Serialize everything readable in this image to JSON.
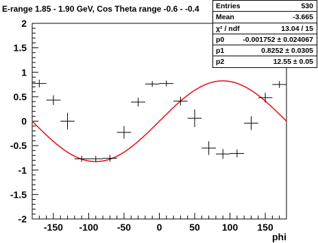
{
  "title": "E-range 1.85 - 1.90 GeV, Cos Theta range -0.6 - -0.4",
  "stats": [
    {
      "label": "Entries",
      "value": "530"
    },
    {
      "label": "Mean",
      "value": "-3.665"
    },
    {
      "label": "χ² / ndf",
      "value": "13.04 / 15"
    },
    {
      "label": "p0",
      "value": "-0.001752 ± 0.024067"
    },
    {
      "label": "p1",
      "value": "0.8252 ± 0.0305"
    },
    {
      "label": "p2",
      "value": "12.55 ± 0.05"
    }
  ],
  "colors": {
    "fit": "#e8141c",
    "data": "#000000"
  },
  "chart_data": {
    "type": "scatter",
    "title": "E-range 1.85 - 1.90 GeV, Cos Theta range -0.6 - -0.4",
    "xlabel": "phi",
    "ylabel": "",
    "xlim": [
      -180,
      180
    ],
    "ylim": [
      -2,
      2
    ],
    "xticks": [
      -150,
      -100,
      -50,
      0,
      50,
      100,
      150
    ],
    "yticks": [
      -2,
      -1.5,
      -1,
      -0.5,
      0,
      0.5,
      1,
      1.5,
      2
    ],
    "ytick_labels": [
      "-2",
      "-1.5",
      "-1",
      "-0.5",
      "0",
      "0.5",
      "1",
      "1.5",
      "2"
    ],
    "grid": false,
    "series": [
      {
        "x": [
          -170,
          -150,
          -130,
          -110,
          -90,
          -70,
          -50,
          -30,
          -10,
          10,
          30,
          50,
          70,
          90,
          110,
          130,
          150,
          170
        ],
        "y": [
          0.77,
          0.43,
          0.0,
          -0.77,
          -0.77,
          -0.76,
          -0.23,
          0.39,
          0.76,
          0.77,
          0.41,
          0.06,
          -0.55,
          -0.67,
          -0.66,
          -0.04,
          0.48,
          0.75
        ],
        "xerr": 10,
        "yerr": [
          0.08,
          0.1,
          0.17,
          0.06,
          0.06,
          0.07,
          0.13,
          0.09,
          0.06,
          0.06,
          0.09,
          0.18,
          0.14,
          0.1,
          0.08,
          0.14,
          0.1,
          0.07
        ]
      }
    ],
    "fit": {
      "function": "p0 + p1*sin(p2*phi)",
      "p0": -0.001752,
      "p1": 0.8252,
      "p2": 12.55
    }
  }
}
